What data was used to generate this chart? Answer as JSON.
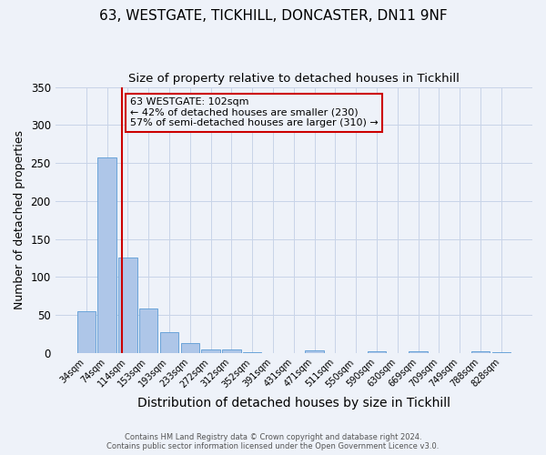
{
  "title1": "63, WESTGATE, TICKHILL, DONCASTER, DN11 9NF",
  "title2": "Size of property relative to detached houses in Tickhill",
  "xlabel": "Distribution of detached houses by size in Tickhill",
  "ylabel": "Number of detached properties",
  "bar_labels": [
    "34sqm",
    "74sqm",
    "114sqm",
    "153sqm",
    "193sqm",
    "233sqm",
    "272sqm",
    "312sqm",
    "352sqm",
    "391sqm",
    "431sqm",
    "471sqm",
    "511sqm",
    "550sqm",
    "590sqm",
    "630sqm",
    "669sqm",
    "709sqm",
    "749sqm",
    "788sqm",
    "828sqm"
  ],
  "bar_values": [
    55,
    257,
    126,
    58,
    27,
    13,
    5,
    5,
    1,
    0,
    0,
    3,
    0,
    0,
    2,
    0,
    2,
    0,
    0,
    2,
    1
  ],
  "bar_color": "#aec6e8",
  "bar_edgecolor": "#5b9bd5",
  "vline_color": "#cc0000",
  "ylim": [
    0,
    350
  ],
  "yticks": [
    0,
    50,
    100,
    150,
    200,
    250,
    300,
    350
  ],
  "annotation_text": "63 WESTGATE: 102sqm\n← 42% of detached houses are smaller (230)\n57% of semi-detached houses are larger (310) →",
  "annotation_box_color": "#cc0000",
  "footer1": "Contains HM Land Registry data © Crown copyright and database right 2024.",
  "footer2": "Contains public sector information licensed under the Open Government Licence v3.0.",
  "bg_color": "#eef2f9",
  "grid_color": "#c8d4e8",
  "title1_fontsize": 11,
  "title2_fontsize": 9.5,
  "xlabel_fontsize": 10,
  "ylabel_fontsize": 9
}
